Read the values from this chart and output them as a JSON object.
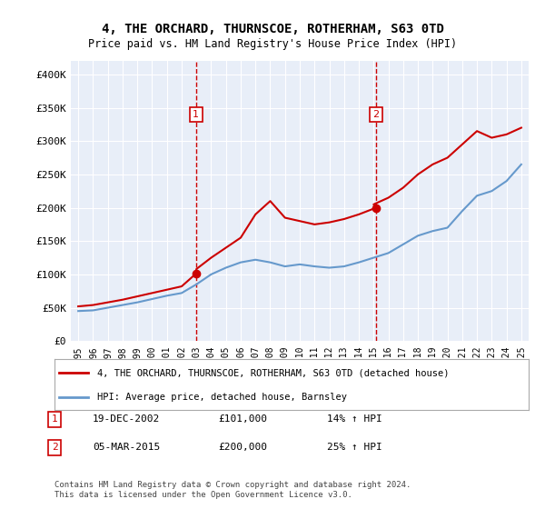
{
  "title": "4, THE ORCHARD, THURNSCOE, ROTHERHAM, S63 0TD",
  "subtitle": "Price paid vs. HM Land Registry's House Price Index (HPI)",
  "legend_line1": "4, THE ORCHARD, THURNSCOE, ROTHERHAM, S63 0TD (detached house)",
  "legend_line2": "HPI: Average price, detached house, Barnsley",
  "annotation1_label": "1",
  "annotation1_date": "19-DEC-2002",
  "annotation1_price": "£101,000",
  "annotation1_hpi": "14% ↑ HPI",
  "annotation2_label": "2",
  "annotation2_date": "05-MAR-2015",
  "annotation2_price": "£200,000",
  "annotation2_hpi": "25% ↑ HPI",
  "footnote": "Contains HM Land Registry data © Crown copyright and database right 2024.\nThis data is licensed under the Open Government Licence v3.0.",
  "bg_color": "#e8eef8",
  "plot_bg_color": "#e8eef8",
  "red_color": "#cc0000",
  "blue_color": "#6699cc",
  "marker_box_color": "#cc0000",
  "vline_color": "#cc0000",
  "ylim": [
    0,
    420000
  ],
  "yticks": [
    0,
    50000,
    100000,
    150000,
    200000,
    250000,
    300000,
    350000,
    400000
  ],
  "ytick_labels": [
    "£0",
    "£50K",
    "£100K",
    "£150K",
    "£200K",
    "£250K",
    "£300K",
    "£350K",
    "£400K"
  ],
  "year_start": 1995,
  "year_end": 2025,
  "sale1_year": 2002.97,
  "sale1_price": 101000,
  "sale2_year": 2015.17,
  "sale2_price": 200000,
  "hpi_years": [
    1995,
    1996,
    1997,
    1998,
    1999,
    2000,
    2001,
    2002,
    2003,
    2004,
    2005,
    2006,
    2007,
    2008,
    2009,
    2010,
    2011,
    2012,
    2013,
    2014,
    2015,
    2016,
    2017,
    2018,
    2019,
    2020,
    2021,
    2022,
    2023,
    2024,
    2025
  ],
  "hpi_values": [
    45000,
    46000,
    50000,
    54000,
    58000,
    63000,
    68000,
    72000,
    85000,
    100000,
    110000,
    118000,
    122000,
    118000,
    112000,
    115000,
    112000,
    110000,
    112000,
    118000,
    125000,
    132000,
    145000,
    158000,
    165000,
    170000,
    195000,
    218000,
    225000,
    240000,
    265000
  ],
  "red_years": [
    1995,
    1996,
    1997,
    1998,
    1999,
    2000,
    2001,
    2002,
    2002.97,
    2003,
    2004,
    2005,
    2006,
    2007,
    2008,
    2009,
    2010,
    2011,
    2012,
    2013,
    2014,
    2015.17,
    2015,
    2016,
    2017,
    2018,
    2019,
    2020,
    2021,
    2022,
    2023,
    2024,
    2025
  ],
  "red_values": [
    52000,
    54000,
    58000,
    62000,
    67000,
    72000,
    77000,
    82000,
    101000,
    108000,
    125000,
    140000,
    155000,
    190000,
    210000,
    185000,
    180000,
    175000,
    178000,
    183000,
    190000,
    200000,
    205000,
    215000,
    230000,
    250000,
    265000,
    275000,
    295000,
    315000,
    305000,
    310000,
    320000
  ]
}
